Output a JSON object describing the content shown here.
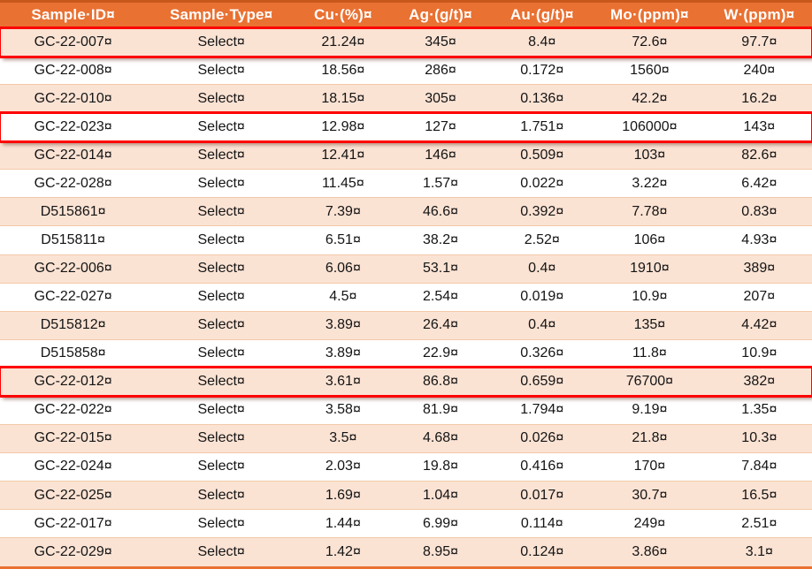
{
  "document": {
    "type": "word-table-with-formatting-marks",
    "space_marker": "·",
    "end_of_cell_marker": "¤"
  },
  "colors": {
    "header_background": "#E97132",
    "header_top_border": "#C8571B",
    "header_text": "#FFFFFF",
    "band_row_background": "#FBE3D4",
    "plain_row_background": "#FFFFFF",
    "row_divider": "#F3C9A8",
    "highlight_box_border": "#FE0000",
    "body_text": "#141414"
  },
  "table": {
    "columns": [
      "Sample·ID",
      "Sample·Type",
      "Cu·(%)",
      "Ag·(g/t)",
      "Au·(g/t)",
      "Mo·(ppm)",
      "W·(ppm)"
    ],
    "rows": [
      {
        "cells": [
          "GC-22-007",
          "Select",
          "21.24",
          "345",
          "8.4",
          "72.6",
          "97.7"
        ],
        "highlighted": true
      },
      {
        "cells": [
          "GC-22-008",
          "Select",
          "18.56",
          "286",
          "0.172",
          "1560",
          "240"
        ],
        "highlighted": false
      },
      {
        "cells": [
          "GC-22-010",
          "Select",
          "18.15",
          "305",
          "0.136",
          "42.2",
          "16.2"
        ],
        "highlighted": false
      },
      {
        "cells": [
          "GC-22-023",
          "Select",
          "12.98",
          "127",
          "1.751",
          "106000",
          "143"
        ],
        "highlighted": true
      },
      {
        "cells": [
          "GC-22-014",
          "Select",
          "12.41",
          "146",
          "0.509",
          "103",
          "82.6"
        ],
        "highlighted": false
      },
      {
        "cells": [
          "GC-22-028",
          "Select",
          "11.45",
          "1.57",
          "0.022",
          "3.22",
          "6.42"
        ],
        "highlighted": false
      },
      {
        "cells": [
          "D515861",
          "Select",
          "7.39",
          "46.6",
          "0.392",
          "7.78",
          "0.83"
        ],
        "highlighted": false
      },
      {
        "cells": [
          "D515811",
          "Select",
          "6.51",
          "38.2",
          "2.52",
          "106",
          "4.93"
        ],
        "highlighted": false
      },
      {
        "cells": [
          "GC-22-006",
          "Select",
          "6.06",
          "53.1",
          "0.4",
          "1910",
          "389"
        ],
        "highlighted": false
      },
      {
        "cells": [
          "GC-22-027",
          "Select",
          "4.5",
          "2.54",
          "0.019",
          "10.9",
          "207"
        ],
        "highlighted": false
      },
      {
        "cells": [
          "D515812",
          "Select",
          "3.89",
          "26.4",
          "0.4",
          "135",
          "4.42"
        ],
        "highlighted": false
      },
      {
        "cells": [
          "D515858",
          "Select",
          "3.89",
          "22.9",
          "0.326",
          "11.8",
          "10.9"
        ],
        "highlighted": false
      },
      {
        "cells": [
          "GC-22-012",
          "Select",
          "3.61",
          "86.8",
          "0.659",
          "76700",
          "382"
        ],
        "highlighted": true
      },
      {
        "cells": [
          "GC-22-022",
          "Select",
          "3.58",
          "81.9",
          "1.794",
          "9.19",
          "1.35"
        ],
        "highlighted": false
      },
      {
        "cells": [
          "GC-22-015",
          "Select",
          "3.5",
          "4.68",
          "0.026",
          "21.8",
          "10.3"
        ],
        "highlighted": false
      },
      {
        "cells": [
          "GC-22-024",
          "Select",
          "2.03",
          "19.8",
          "0.416",
          "170",
          "7.84"
        ],
        "highlighted": false
      },
      {
        "cells": [
          "GC-22-025",
          "Select",
          "1.69",
          "1.04",
          "0.017",
          "30.7",
          "16.5"
        ],
        "highlighted": false
      },
      {
        "cells": [
          "GC-22-017",
          "Select",
          "1.44",
          "6.99",
          "0.114",
          "249",
          "2.51"
        ],
        "highlighted": false
      },
      {
        "cells": [
          "GC-22-029",
          "Select",
          "1.42",
          "8.95",
          "0.124",
          "3.86",
          "3.1"
        ],
        "highlighted": false
      }
    ]
  }
}
